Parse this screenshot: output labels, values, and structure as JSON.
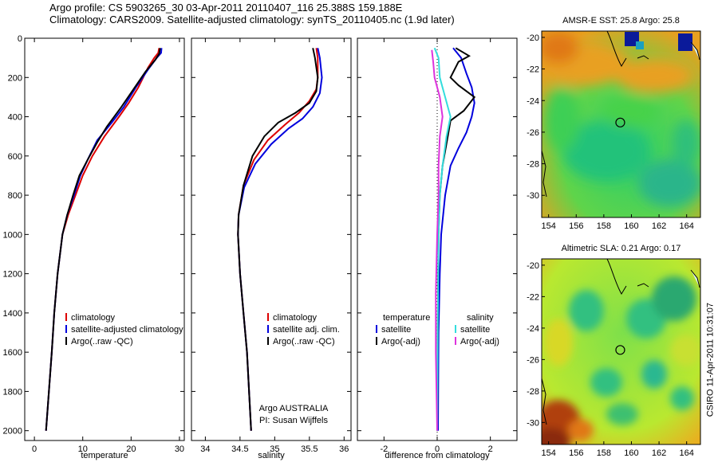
{
  "header": {
    "title_line1": "Argo profile: CS 5903265_30 03-Apr-2011 20110407_116 25.388S 159.188E",
    "title_line2": "Climatology: CARS2009. Satellite-adjusted climatology: synTS_20110405.nc (1.9d later)"
  },
  "side_note": "CSIRO 11-Apr-2011 10:31:07",
  "colors": {
    "red": "#dd0000",
    "blue": "#0000dd",
    "black": "#000000",
    "cyan": "#33dddd",
    "magenta": "#dd33dd"
  },
  "chart_data": [
    {
      "type": "line",
      "xlabel": "temperature",
      "xlim": [
        -2,
        31
      ],
      "ylim": [
        2050,
        0
      ],
      "xticks": [
        0,
        10,
        20,
        30
      ],
      "yticks": [
        0,
        200,
        400,
        600,
        800,
        1000,
        1200,
        1400,
        1600,
        1800,
        2000
      ],
      "legend": {
        "placement": "lower-right",
        "entries": [
          "climatology",
          "satellite-adjusted climatology",
          "Argo(..raw -QC)"
        ]
      },
      "series": [
        {
          "name": "climatology",
          "color": "red",
          "points": [
            [
              25.8,
              50
            ],
            [
              25.6,
              75
            ],
            [
              24.8,
              100
            ],
            [
              23.5,
              150
            ],
            [
              21.5,
              250
            ],
            [
              19.5,
              330
            ],
            [
              17.5,
              400
            ],
            [
              14.5,
              500
            ],
            [
              12,
              600
            ],
            [
              10,
              700
            ],
            [
              8.5,
              800
            ],
            [
              7,
              900
            ],
            [
              5.8,
              1000
            ],
            [
              4.8,
              1200
            ],
            [
              4.1,
              1400
            ],
            [
              3.6,
              1600
            ],
            [
              3,
              1800
            ],
            [
              2.4,
              2000
            ]
          ]
        },
        {
          "name": "satellite-adjusted climatology",
          "color": "blue",
          "points": [
            [
              26.3,
              50
            ],
            [
              26.2,
              75
            ],
            [
              25.3,
              100
            ],
            [
              23.5,
              160
            ],
            [
              21,
              250
            ],
            [
              18.5,
              350
            ],
            [
              16,
              430
            ],
            [
              13,
              520
            ],
            [
              11,
              620
            ],
            [
              9.5,
              700
            ],
            [
              8.2,
              800
            ],
            [
              6.8,
              900
            ],
            [
              5.8,
              1000
            ],
            [
              4.8,
              1200
            ],
            [
              4.1,
              1400
            ],
            [
              3.6,
              1600
            ],
            [
              3,
              1800
            ],
            [
              2.4,
              2000
            ]
          ]
        },
        {
          "name": "Argo(..raw -QC)",
          "color": "black",
          "points": [
            [
              26,
              50
            ],
            [
              25.8,
              80
            ],
            [
              25,
              110
            ],
            [
              23,
              170
            ],
            [
              20.5,
              260
            ],
            [
              18,
              350
            ],
            [
              15,
              450
            ],
            [
              13,
              530
            ],
            [
              11,
              620
            ],
            [
              9.3,
              700
            ],
            [
              8,
              800
            ],
            [
              6.8,
              900
            ],
            [
              5.8,
              1000
            ],
            [
              4.8,
              1200
            ],
            [
              4.1,
              1400
            ],
            [
              3.6,
              1600
            ],
            [
              3,
              1800
            ],
            [
              2.4,
              2000
            ]
          ]
        }
      ]
    },
    {
      "type": "line",
      "xlabel": "salinity",
      "xlim": [
        33.8,
        36.1
      ],
      "ylim": [
        2050,
        0
      ],
      "xticks": [
        34,
        34.5,
        35,
        35.5,
        36
      ],
      "yticks": [
        0,
        200,
        400,
        600,
        800,
        1000,
        1200,
        1400,
        1600,
        1800,
        2000
      ],
      "legend": {
        "placement": "lower-right",
        "entries": [
          "climatology",
          "satellite adj. clim.",
          "Argo(..raw -QC)"
        ]
      },
      "annotation": [
        "Argo AUSTRALIA",
        "PI: Susan Wijffels"
      ],
      "series": [
        {
          "name": "climatology",
          "color": "red",
          "points": [
            [
              35.6,
              50
            ],
            [
              35.62,
              100
            ],
            [
              35.62,
              200
            ],
            [
              35.6,
              260
            ],
            [
              35.5,
              320
            ],
            [
              35.35,
              380
            ],
            [
              35.15,
              440
            ],
            [
              34.9,
              520
            ],
            [
              34.7,
              620
            ],
            [
              34.55,
              750
            ],
            [
              34.48,
              900
            ],
            [
              34.47,
              1000
            ],
            [
              34.5,
              1200
            ],
            [
              34.55,
              1400
            ],
            [
              34.6,
              1600
            ],
            [
              34.63,
              1800
            ],
            [
              34.66,
              2000
            ]
          ]
        },
        {
          "name": "satellite adj. clim.",
          "color": "blue",
          "points": [
            [
              35.62,
              50
            ],
            [
              35.65,
              100
            ],
            [
              35.68,
              200
            ],
            [
              35.65,
              280
            ],
            [
              35.55,
              350
            ],
            [
              35.4,
              410
            ],
            [
              35.2,
              460
            ],
            [
              34.95,
              540
            ],
            [
              34.72,
              640
            ],
            [
              34.56,
              760
            ],
            [
              34.48,
              900
            ],
            [
              34.47,
              1000
            ],
            [
              34.5,
              1200
            ],
            [
              34.55,
              1400
            ],
            [
              34.6,
              1600
            ],
            [
              34.63,
              1800
            ],
            [
              34.66,
              2000
            ]
          ]
        },
        {
          "name": "Argo(..raw -QC)",
          "color": "black",
          "points": [
            [
              35.55,
              50
            ],
            [
              35.58,
              100
            ],
            [
              35.62,
              200
            ],
            [
              35.6,
              270
            ],
            [
              35.5,
              330
            ],
            [
              35.3,
              380
            ],
            [
              35.05,
              430
            ],
            [
              34.85,
              500
            ],
            [
              34.68,
              600
            ],
            [
              34.55,
              750
            ],
            [
              34.48,
              900
            ],
            [
              34.47,
              1000
            ],
            [
              34.5,
              1200
            ],
            [
              34.55,
              1400
            ],
            [
              34.6,
              1600
            ],
            [
              34.63,
              1800
            ],
            [
              34.66,
              2000
            ]
          ]
        }
      ]
    },
    {
      "type": "line",
      "xlabel": "difference from climatology",
      "xlim": [
        -3,
        3
      ],
      "ylim": [
        2050,
        0
      ],
      "xticks": [
        -2,
        0,
        2
      ],
      "yticks": [
        0,
        200,
        400,
        600,
        800,
        1000,
        1200,
        1400,
        1600,
        1800,
        2000
      ],
      "legend": {
        "placement": "lower-center",
        "temperature": {
          "heading": "temperature",
          "entries": [
            "satellite",
            "Argo(-adj)"
          ]
        },
        "salinity": {
          "heading": "salinity",
          "entries": [
            "satellite",
            "Argo(-adj)"
          ]
        }
      },
      "series": [
        {
          "name": "satellite",
          "group": "temperature",
          "color": "blue",
          "points": [
            [
              0.6,
              50
            ],
            [
              0.9,
              100
            ],
            [
              1.1,
              180
            ],
            [
              1.3,
              250
            ],
            [
              1.4,
              330
            ],
            [
              1.3,
              400
            ],
            [
              1.1,
              480
            ],
            [
              0.8,
              560
            ],
            [
              0.5,
              650
            ],
            [
              0.3,
              800
            ],
            [
              0.15,
              1000
            ],
            [
              0.1,
              1200
            ],
            [
              0.05,
              1500
            ],
            [
              0.03,
              2000
            ]
          ]
        },
        {
          "name": "Argo(-adj)",
          "group": "temperature",
          "color": "black",
          "points": [
            [
              0.7,
              50
            ],
            [
              1.2,
              90
            ],
            [
              0.8,
              120
            ],
            [
              0.5,
              200
            ],
            [
              0.8,
              240
            ],
            [
              1.4,
              300
            ],
            [
              1.0,
              370
            ],
            [
              0.5,
              420
            ],
            [
              0.4,
              500
            ],
            [
              0.2,
              650
            ],
            [
              0.1,
              800
            ],
            [
              0.05,
              1000
            ],
            [
              0.02,
              1500
            ],
            [
              0,
              2000
            ]
          ]
        },
        {
          "name": "satellite",
          "group": "salinity",
          "color": "cyan",
          "points": [
            [
              -0.1,
              50
            ],
            [
              0.05,
              100
            ],
            [
              0.1,
              200
            ],
            [
              0.3,
              300
            ],
            [
              0.5,
              400
            ],
            [
              0.35,
              500
            ],
            [
              0.2,
              650
            ],
            [
              0.1,
              800
            ],
            [
              0.05,
              1000
            ],
            [
              0.02,
              1500
            ],
            [
              0,
              2000
            ]
          ]
        },
        {
          "name": "Argo(-adj)",
          "group": "salinity",
          "color": "magenta",
          "points": [
            [
              -0.2,
              60
            ],
            [
              -0.15,
              120
            ],
            [
              -0.1,
              200
            ],
            [
              0.1,
              300
            ],
            [
              0.2,
              400
            ],
            [
              0.1,
              500
            ],
            [
              0.05,
              650
            ],
            [
              0.05,
              800
            ],
            [
              0,
              1000
            ],
            [
              -0.05,
              1300
            ],
            [
              -0.05,
              1600
            ],
            [
              0,
              2000
            ]
          ]
        }
      ]
    },
    {
      "type": "heatmap",
      "title": "AMSR-E SST: 25.8 Argo: 25.8",
      "xlim": [
        153.5,
        165
      ],
      "ylim": [
        -31.4,
        -19.6
      ],
      "xticks": [
        154,
        156,
        158,
        160,
        162,
        164
      ],
      "yticks": [
        -20,
        -22,
        -24,
        -26,
        -28,
        -30
      ],
      "marker": [
        159.19,
        -25.39
      ]
    },
    {
      "type": "heatmap",
      "title": "Altimetric SLA: 0.21 Argo: 0.17",
      "xlim": [
        153.5,
        165
      ],
      "ylim": [
        -31.4,
        -19.6
      ],
      "xticks": [
        154,
        156,
        158,
        160,
        162,
        164
      ],
      "yticks": [
        -20,
        -22,
        -24,
        -26,
        -28,
        -30
      ],
      "marker": [
        159.19,
        -25.39
      ]
    }
  ]
}
